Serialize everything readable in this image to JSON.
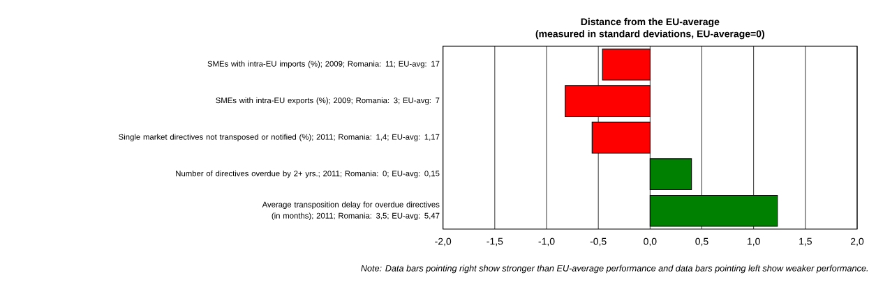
{
  "chart_data": {
    "type": "bar",
    "orientation": "horizontal",
    "title": "Distance from the EU-average",
    "subtitle": "(measured in standard deviations, EU-average=0)",
    "categories": [
      "SMEs with intra-EU imports (%); 2009; Romania: 11; EU-avg: 17",
      "SMEs with intra-EU exports (%); 2009; Romania: 3; EU-avg: 7",
      "Single market directives not transposed or notified (%); 2011; Romania: 1,4; EU-avg: 1,17",
      "Number of directives overdue by 2+ yrs.; 2011; Romania: 0; EU-avg: 0,15",
      "Average transposition delay for overdue directives (in months); 2011; Romania: 3,5; EU-avg: 5,47"
    ],
    "values": [
      -0.46,
      -0.82,
      -0.56,
      0.4,
      1.23
    ],
    "colors": [
      "#ff0000",
      "#ff0000",
      "#ff0000",
      "#008000",
      "#008000"
    ],
    "xlim": [
      -2,
      2
    ],
    "xticks": [
      {
        "value": -2,
        "label": "-2,0"
      },
      {
        "value": -1.5,
        "label": "-1,5"
      },
      {
        "value": -1,
        "label": "-1,0"
      },
      {
        "value": -0.5,
        "label": "-0,5"
      },
      {
        "value": 0,
        "label": "0,0"
      },
      {
        "value": 0.5,
        "label": "0,5"
      },
      {
        "value": 1,
        "label": "1,0"
      },
      {
        "value": 1.5,
        "label": "1,5"
      },
      {
        "value": 2,
        "label": "2,0"
      }
    ],
    "grid": "x",
    "annotations": [
      "Note: Data bars pointing right show stronger than EU-average performance and data bars pointing left show weaker performance."
    ]
  }
}
